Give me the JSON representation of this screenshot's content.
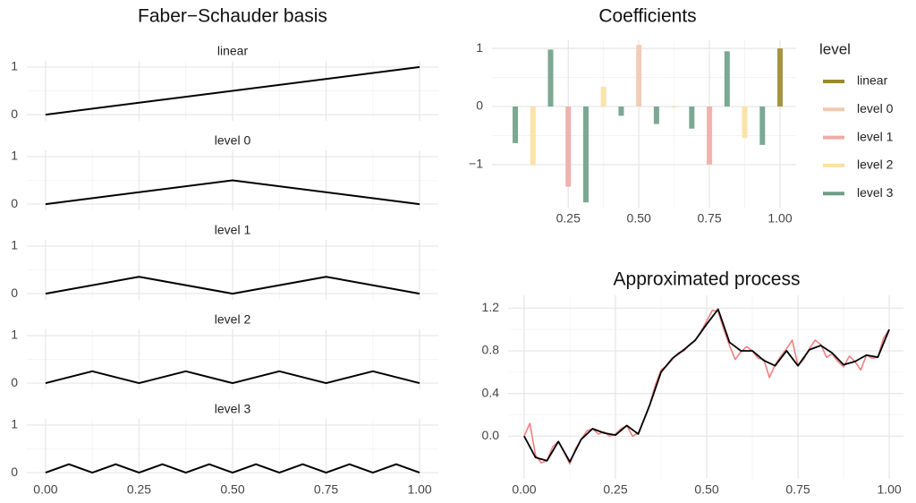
{
  "chart_data": [
    {
      "type": "facet-line",
      "title": "Faber−Schauder basis",
      "color": "#000000",
      "grid": true,
      "xlim": [
        -0.05,
        1.05
      ],
      "xticks": [
        {
          "value": 0,
          "label": "0.00"
        },
        0.25,
        {
          "value": 0.5,
          "label": "0.50"
        },
        0.75,
        {
          "value": 1,
          "label": "1.00"
        }
      ],
      "ylim": [
        -0.13,
        1.13
      ],
      "yticks": [
        0,
        1
      ],
      "facets": [
        {
          "title": "linear",
          "x": [
            0,
            1
          ],
          "values": [
            0,
            1
          ]
        },
        {
          "title": "level 0",
          "x": [
            0,
            0.5,
            1
          ],
          "values": [
            0,
            0.5,
            0
          ]
        },
        {
          "title": "level 1",
          "x": [
            0,
            0.25,
            0.5,
            0.75,
            1
          ],
          "values": [
            0,
            0.354,
            0,
            0.354,
            0
          ]
        },
        {
          "title": "level 2",
          "x": [
            0,
            0.125,
            0.25,
            0.375,
            0.5,
            0.625,
            0.75,
            0.875,
            1
          ],
          "values": [
            0,
            0.25,
            0,
            0.25,
            0,
            0.25,
            0,
            0.25,
            0
          ]
        },
        {
          "title": "level 3",
          "x": [
            0,
            0.0625,
            0.125,
            0.1875,
            0.25,
            0.3125,
            0.375,
            0.4375,
            0.5,
            0.5625,
            0.625,
            0.6875,
            0.75,
            0.8125,
            0.875,
            0.9375,
            1
          ],
          "values": [
            0,
            0.177,
            0,
            0.177,
            0,
            0.177,
            0,
            0.177,
            0,
            0.177,
            0,
            0.177,
            0,
            0.177,
            0,
            0.177,
            0
          ]
        }
      ]
    },
    {
      "type": "bar",
      "title": "Coefficients",
      "legend_title": "level",
      "grid": true,
      "xlim": [
        -0.02,
        1.057
      ],
      "xticks": [
        0.25,
        {
          "value": 0.5,
          "label": "0.50"
        },
        0.75,
        {
          "value": 1,
          "label": "1.00"
        }
      ],
      "ylim": [
        -1.74,
        1.14
      ],
      "yticks": [
        {
          "value": -1,
          "label": "−1"
        },
        0,
        1
      ],
      "series": [
        {
          "name": "linear",
          "color": "#9a8a2f",
          "x": [
            1
          ],
          "values": [
            1.0
          ]
        },
        {
          "name": "level 0",
          "color": "#f4c7b0",
          "x": [
            0.5
          ],
          "values": [
            1.06
          ]
        },
        {
          "name": "level 1",
          "color": "#f1aaa5",
          "x": [
            0.25,
            0.75
          ],
          "values": [
            -1.38,
            -1.0
          ]
        },
        {
          "name": "level 2",
          "color": "#fbe0a0",
          "x": [
            0.125,
            0.375,
            0.625,
            0.875
          ],
          "values": [
            -1.01,
            0.34,
            -0.02,
            -0.54
          ]
        },
        {
          "name": "level 3",
          "color": "#6d9e86",
          "x": [
            0.0625,
            0.1875,
            0.3125,
            0.4375,
            0.5625,
            0.6875,
            0.8125,
            0.9375
          ],
          "values": [
            -0.63,
            0.98,
            -1.65,
            -0.16,
            -0.3,
            -0.38,
            0.95,
            -0.66
          ]
        }
      ]
    },
    {
      "type": "line",
      "title": "Approximated process",
      "grid": true,
      "xlim": [
        -0.044,
        1.039
      ],
      "xticks": [
        {
          "value": 0,
          "label": "0.00"
        },
        0.25,
        {
          "value": 0.5,
          "label": "0.50"
        },
        0.75,
        {
          "value": 1,
          "label": "1.00"
        }
      ],
      "ylim": [
        -0.4,
        1.32
      ],
      "yticks": [
        {
          "value": 0,
          "label": "0.0"
        },
        0.4,
        0.8,
        1.2
      ],
      "series": [
        {
          "color": "#f08080",
          "x": [
            0,
            0.015625,
            0.03125,
            0.046875,
            0.0625,
            0.078125,
            0.09375,
            0.109375,
            0.125,
            0.140625,
            0.15625,
            0.171875,
            0.1875,
            0.203125,
            0.21875,
            0.234375,
            0.25,
            0.265625,
            0.28125,
            0.296875,
            0.3125,
            0.328125,
            0.34375,
            0.359375,
            0.375,
            0.390625,
            0.40625,
            0.421875,
            0.4375,
            0.453125,
            0.46875,
            0.484375,
            0.5,
            0.515625,
            0.53125,
            0.546875,
            0.5625,
            0.578125,
            0.59375,
            0.609375,
            0.625,
            0.640625,
            0.65625,
            0.671875,
            0.6875,
            0.703125,
            0.71875,
            0.734375,
            0.75,
            0.765625,
            0.78125,
            0.796875,
            0.8125,
            0.828125,
            0.84375,
            0.859375,
            0.875,
            0.890625,
            0.90625,
            0.921875,
            0.9375,
            0.953125,
            0.96875,
            0.984375,
            1
          ],
          "values": [
            0,
            0.12,
            -0.18,
            -0.25,
            -0.23,
            -0.1,
            -0.05,
            -0.15,
            -0.26,
            -0.12,
            -0.03,
            0.05,
            0.07,
            0.02,
            0.04,
            0.0,
            0.02,
            0.07,
            0.1,
            0.0,
            0.03,
            0.15,
            0.29,
            0.48,
            0.62,
            0.66,
            0.72,
            0.78,
            0.8,
            0.86,
            0.9,
            0.98,
            1.08,
            1.18,
            1.17,
            1.0,
            0.85,
            0.72,
            0.79,
            0.84,
            0.8,
            0.73,
            0.72,
            0.55,
            0.67,
            0.75,
            0.82,
            0.9,
            0.66,
            0.72,
            0.82,
            0.9,
            0.86,
            0.74,
            0.77,
            0.7,
            0.65,
            0.75,
            0.7,
            0.62,
            0.76,
            0.73,
            0.74,
            0.92,
            1.0
          ]
        },
        {
          "color": "#000000",
          "x": [
            0,
            0.03125,
            0.0625,
            0.09375,
            0.125,
            0.15625,
            0.1875,
            0.21875,
            0.25,
            0.28125,
            0.3125,
            0.34375,
            0.375,
            0.40625,
            0.4375,
            0.46875,
            0.5,
            0.53125,
            0.5625,
            0.59375,
            0.625,
            0.65625,
            0.6875,
            0.71875,
            0.75,
            0.78125,
            0.8125,
            0.84375,
            0.875,
            0.90625,
            0.9375,
            0.96875,
            1
          ],
          "values": [
            0,
            -0.2,
            -0.23,
            -0.05,
            -0.24,
            -0.03,
            0.07,
            0.03,
            0.01,
            0.1,
            0.02,
            0.29,
            0.6,
            0.73,
            0.81,
            0.9,
            1.05,
            1.19,
            0.88,
            0.8,
            0.8,
            0.71,
            0.66,
            0.8,
            0.66,
            0.81,
            0.85,
            0.78,
            0.67,
            0.7,
            0.76,
            0.74,
            1.0
          ]
        }
      ]
    }
  ]
}
